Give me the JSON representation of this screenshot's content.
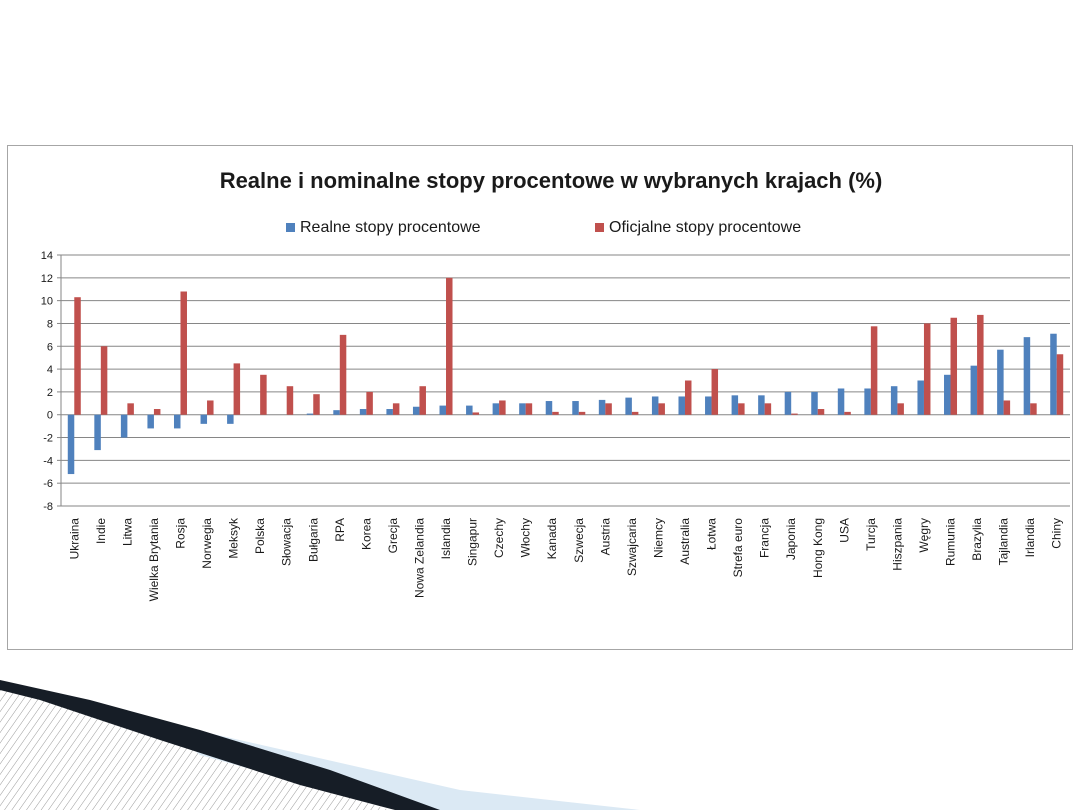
{
  "chart_data": {
    "type": "bar",
    "title": "Realne i nominalne stopy procentowe w wybranych krajach (%)",
    "xlabel": "",
    "ylabel": "",
    "ylim": [
      -8,
      14
    ],
    "yticks": [
      14,
      12,
      10,
      8,
      6,
      4,
      2,
      0,
      -2,
      -4,
      -6,
      -8
    ],
    "grid": true,
    "legend_position": "top",
    "categories": [
      "Ukraina",
      "Indie",
      "Litwa",
      "Wielka Brytania",
      "Rosja",
      "Norwegia",
      "Meksyk",
      "Polska",
      "Słowacja",
      "Bułgaria",
      "RPA",
      "Korea",
      "Grecja",
      "Nowa Zelandia",
      "Islandia",
      "Singapur",
      "Czechy",
      "Włochy",
      "Kanada",
      "Szwecja",
      "Austria",
      "Szwajcaria",
      "Niemcy",
      "Australia",
      "Łotwa",
      "Strefa euro",
      "Francja",
      "Japonia",
      "Hong Kong",
      "USA",
      "Turcja",
      "Hiszpania",
      "Węgry",
      "Rumunia",
      "Brazylia",
      "Tajlandia",
      "Irlandia",
      "Chiny"
    ],
    "series": [
      {
        "name": "Realne stopy procentowe",
        "color": "#4f81bd",
        "values": [
          -5.2,
          -3.1,
          -2.0,
          -1.2,
          -1.2,
          -0.8,
          -0.8,
          0,
          0,
          0.1,
          0.4,
          0.5,
          0.5,
          0.7,
          0.8,
          0.8,
          1.0,
          1.0,
          1.2,
          1.2,
          1.3,
          1.5,
          1.6,
          1.6,
          1.6,
          1.7,
          1.7,
          2.0,
          2.0,
          2.3,
          2.3,
          2.5,
          3.0,
          3.5,
          4.3,
          5.7,
          6.8,
          7.1
        ]
      },
      {
        "name": "Oficjalne stopy procentowe",
        "color": "#c0504d",
        "values": [
          10.3,
          6.0,
          1.0,
          0.5,
          10.8,
          1.25,
          4.5,
          3.5,
          2.5,
          1.8,
          7.0,
          2.0,
          1.0,
          2.5,
          12.0,
          0.2,
          1.25,
          1.0,
          0.25,
          0.25,
          1.0,
          0.25,
          1.0,
          3.0,
          4.0,
          1.0,
          1.0,
          0.1,
          0.5,
          0.25,
          7.75,
          1.0,
          8.0,
          8.5,
          8.75,
          1.25,
          1.0,
          5.3
        ]
      }
    ]
  }
}
